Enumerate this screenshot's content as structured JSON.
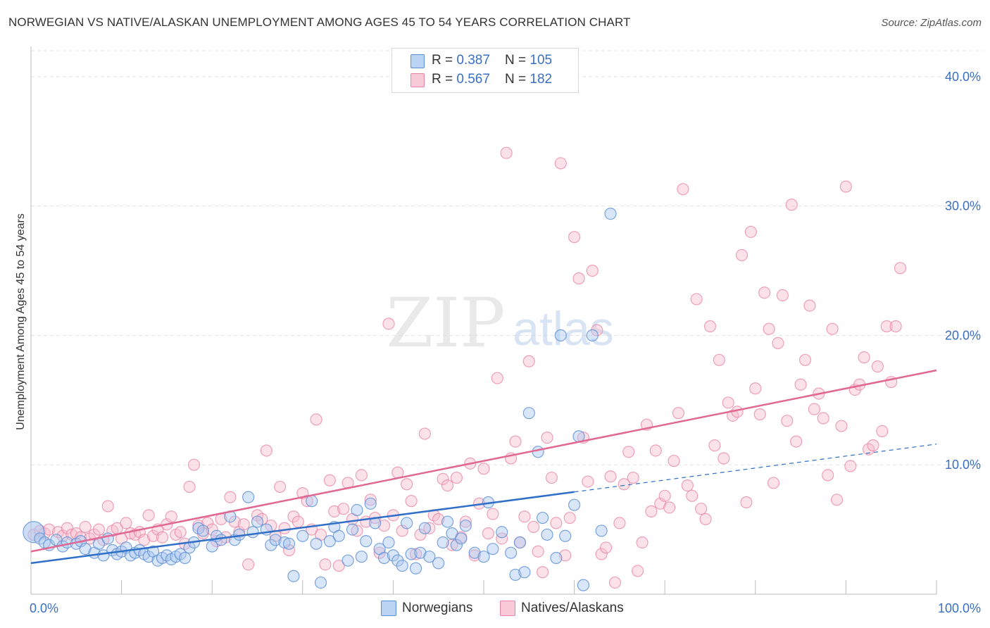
{
  "title": "NORWEGIAN VS NATIVE/ALASKAN UNEMPLOYMENT AMONG AGES 45 TO 54 YEARS CORRELATION CHART",
  "source": "Source: ZipAtlas.com",
  "watermark": {
    "zip": "ZIP",
    "atlas": "atlas"
  },
  "legend": {
    "series1": {
      "r_label": "R = ",
      "r_value": "0.387",
      "n_label": "N = ",
      "n_value": "105"
    },
    "series2": {
      "r_label": "R = ",
      "r_value": "0.567",
      "n_label": "N = ",
      "n_value": "182"
    }
  },
  "colors": {
    "blue_fill": "#aac8f0",
    "blue_stroke": "#5b8fd6",
    "blue_line": "#2f6fc7",
    "pink_fill": "#f6bccd",
    "pink_stroke": "#e884a4",
    "pink_line": "#e06892",
    "grid": "#e3e3e3",
    "tick_label": "#3a6fc4",
    "axis": "#bbbbbb"
  },
  "chart_data": {
    "type": "scatter",
    "title": "NORWEGIAN VS NATIVE/ALASKAN UNEMPLOYMENT AMONG AGES 45 TO 54 YEARS CORRELATION CHART",
    "xlabel": "",
    "ylabel": "Unemployment Among Ages 45 to 54 years",
    "xlim": [
      0,
      100
    ],
    "ylim": [
      0,
      42
    ],
    "x_tick_labels": [
      "0.0%",
      "100.0%"
    ],
    "y_ticks": [
      10,
      20,
      30,
      40
    ],
    "y_tick_labels": [
      "10.0%",
      "20.0%",
      "30.0%",
      "40.0%"
    ],
    "grid": true,
    "legend_position": "top-center",
    "series": [
      {
        "name": "Norwegians",
        "trend": {
          "x0": 0,
          "y0": 2.4,
          "x1": 60,
          "y1": 7.9,
          "dashed_to_x": 100,
          "dashed_to_y": 11.6
        },
        "points": [
          [
            0.3,
            4.8
          ],
          [
            1,
            4.3
          ],
          [
            1.5,
            4.0
          ],
          [
            2,
            3.8
          ],
          [
            2.8,
            4.2
          ],
          [
            3.5,
            3.7
          ],
          [
            4,
            4.0
          ],
          [
            5,
            3.9
          ],
          [
            5.5,
            4.1
          ],
          [
            6,
            3.5
          ],
          [
            7,
            3.2
          ],
          [
            7.5,
            3.9
          ],
          [
            8,
            3.0
          ],
          [
            8.5,
            4.3
          ],
          [
            9,
            3.4
          ],
          [
            9.5,
            3.1
          ],
          [
            10,
            3.3
          ],
          [
            10.5,
            3.6
          ],
          [
            11,
            3.0
          ],
          [
            11.5,
            3.2
          ],
          [
            12,
            3.4
          ],
          [
            12.5,
            3.1
          ],
          [
            13,
            2.9
          ],
          [
            13.5,
            3.3
          ],
          [
            14,
            2.6
          ],
          [
            14.5,
            2.8
          ],
          [
            15,
            3.0
          ],
          [
            15.5,
            2.7
          ],
          [
            16,
            2.9
          ],
          [
            16.5,
            3.1
          ],
          [
            17,
            2.8
          ],
          [
            17.5,
            3.6
          ],
          [
            18,
            4.0
          ],
          [
            18.5,
            5.1
          ],
          [
            19,
            4.9
          ],
          [
            20,
            3.7
          ],
          [
            20.5,
            4.5
          ],
          [
            21,
            4.2
          ],
          [
            22,
            6.0
          ],
          [
            22.5,
            4.2
          ],
          [
            23,
            4.6
          ],
          [
            24,
            7.5
          ],
          [
            24.5,
            4.8
          ],
          [
            25,
            5.6
          ],
          [
            26,
            5.0
          ],
          [
            26.5,
            3.8
          ],
          [
            27,
            4.2
          ],
          [
            28,
            4.0
          ],
          [
            28.5,
            3.9
          ],
          [
            29,
            1.4
          ],
          [
            30,
            4.5
          ],
          [
            31,
            7.2
          ],
          [
            31.5,
            3.9
          ],
          [
            32,
            0.9
          ],
          [
            33,
            4.1
          ],
          [
            33.5,
            5.2
          ],
          [
            34,
            4.5
          ],
          [
            35,
            2.6
          ],
          [
            35.5,
            5.0
          ],
          [
            36,
            6.5
          ],
          [
            36.5,
            2.9
          ],
          [
            37,
            4.1
          ],
          [
            37.5,
            7.0
          ],
          [
            38,
            5.5
          ],
          [
            38.5,
            3.5
          ],
          [
            39,
            2.8
          ],
          [
            39.5,
            4.0
          ],
          [
            40,
            3.0
          ],
          [
            40.5,
            2.6
          ],
          [
            41,
            2.2
          ],
          [
            41.5,
            5.5
          ],
          [
            42,
            3.1
          ],
          [
            42.5,
            2.0
          ],
          [
            43,
            3.2
          ],
          [
            43.5,
            5.1
          ],
          [
            44,
            2.9
          ],
          [
            45,
            2.4
          ],
          [
            45.5,
            4.0
          ],
          [
            46,
            5.6
          ],
          [
            46.5,
            4.7
          ],
          [
            47,
            3.8
          ],
          [
            47.5,
            4.3
          ],
          [
            48,
            5.3
          ],
          [
            49,
            3.2
          ],
          [
            50,
            2.9
          ],
          [
            50.5,
            7.1
          ],
          [
            51,
            3.5
          ],
          [
            52,
            4.8
          ],
          [
            53,
            3.2
          ],
          [
            53.5,
            1.5
          ],
          [
            54,
            4.0
          ],
          [
            54.5,
            1.7
          ],
          [
            55,
            14.0
          ],
          [
            56,
            11.0
          ],
          [
            56.5,
            5.9
          ],
          [
            57,
            4.6
          ],
          [
            58,
            2.8
          ],
          [
            58.5,
            20.0
          ],
          [
            59,
            4.5
          ],
          [
            60,
            6.9
          ],
          [
            60.5,
            12.2
          ],
          [
            61,
            0.7
          ],
          [
            62,
            20.0
          ],
          [
            63,
            4.9
          ],
          [
            64,
            29.4
          ]
        ]
      },
      {
        "name": "Natives/Alaskans",
        "trend": {
          "x0": 0,
          "y0": 3.3,
          "x1": 100,
          "y1": 17.3
        },
        "points": [
          [
            0.3,
            4.6
          ],
          [
            1,
            4.9
          ],
          [
            1.5,
            4.7
          ],
          [
            2,
            5.0
          ],
          [
            3,
            4.8
          ],
          [
            3.5,
            4.5
          ],
          [
            4,
            5.1
          ],
          [
            4.5,
            4.6
          ],
          [
            5,
            4.7
          ],
          [
            5.5,
            4.4
          ],
          [
            6,
            5.2
          ],
          [
            6.5,
            4.3
          ],
          [
            7,
            4.6
          ],
          [
            7.5,
            5.0
          ],
          [
            8,
            4.2
          ],
          [
            8.5,
            6.8
          ],
          [
            9,
            4.9
          ],
          [
            9.5,
            5.1
          ],
          [
            10,
            4.3
          ],
          [
            10.5,
            5.5
          ],
          [
            11,
            4.7
          ],
          [
            11.5,
            4.6
          ],
          [
            12,
            4.8
          ],
          [
            12.5,
            4.2
          ],
          [
            13,
            6.1
          ],
          [
            13.5,
            4.5
          ],
          [
            14,
            5.0
          ],
          [
            14.5,
            4.4
          ],
          [
            15,
            5.4
          ],
          [
            15.5,
            6.0
          ],
          [
            16,
            4.6
          ],
          [
            16.5,
            4.8
          ],
          [
            17,
            3.9
          ],
          [
            17.5,
            8.3
          ],
          [
            18,
            10.0
          ],
          [
            18.5,
            5.3
          ],
          [
            19,
            4.7
          ],
          [
            19.5,
            5.5
          ],
          [
            20,
            5.0
          ],
          [
            20.5,
            4.1
          ],
          [
            21,
            5.8
          ],
          [
            21.5,
            4.4
          ],
          [
            22,
            7.5
          ],
          [
            22.5,
            5.6
          ],
          [
            23,
            4.8
          ],
          [
            23.5,
            5.4
          ],
          [
            24,
            2.3
          ],
          [
            25,
            6.1
          ],
          [
            25.5,
            5.8
          ],
          [
            26,
            11.1
          ],
          [
            26.5,
            5.3
          ],
          [
            27,
            4.5
          ],
          [
            27.5,
            8.3
          ],
          [
            28,
            5.1
          ],
          [
            28.5,
            3.4
          ],
          [
            29,
            6.0
          ],
          [
            29.5,
            5.6
          ],
          [
            30,
            7.8
          ],
          [
            30.5,
            7.2
          ],
          [
            31,
            5.0
          ],
          [
            31.5,
            13.5
          ],
          [
            32,
            4.6
          ],
          [
            32.5,
            2.3
          ],
          [
            33,
            8.8
          ],
          [
            33.5,
            6.4
          ],
          [
            34,
            2.2
          ],
          [
            34.5,
            6.6
          ],
          [
            35,
            8.6
          ],
          [
            35.5,
            5.8
          ],
          [
            36,
            4.9
          ],
          [
            36.5,
            9.2
          ],
          [
            37,
            5.6
          ],
          [
            37.5,
            7.3
          ],
          [
            38,
            5.9
          ],
          [
            38.5,
            3.2
          ],
          [
            39,
            5.3
          ],
          [
            39.5,
            20.9
          ],
          [
            40,
            6.1
          ],
          [
            40.5,
            9.4
          ],
          [
            41,
            4.9
          ],
          [
            41.5,
            8.5
          ],
          [
            42,
            7.2
          ],
          [
            42.5,
            3.1
          ],
          [
            43,
            4.6
          ],
          [
            43.5,
            12.4
          ],
          [
            44,
            5.1
          ],
          [
            44.5,
            6.1
          ],
          [
            45,
            5.8
          ],
          [
            45.5,
            8.9
          ],
          [
            46,
            8.4
          ],
          [
            46.5,
            3.8
          ],
          [
            47,
            9.0
          ],
          [
            47.5,
            4.4
          ],
          [
            48,
            5.6
          ],
          [
            48.5,
            10.1
          ],
          [
            49,
            3.0
          ],
          [
            49.5,
            7.0
          ],
          [
            50,
            9.7
          ],
          [
            50.5,
            4.7
          ],
          [
            51,
            6.2
          ],
          [
            51.5,
            16.7
          ],
          [
            52,
            4.3
          ],
          [
            52.5,
            34.1
          ],
          [
            53,
            10.5
          ],
          [
            53.5,
            11.8
          ],
          [
            54,
            4.0
          ],
          [
            54.5,
            6.0
          ],
          [
            55,
            18.0
          ],
          [
            55.5,
            5.2
          ],
          [
            56,
            3.3
          ],
          [
            56.5,
            1.7
          ],
          [
            57,
            12.1
          ],
          [
            57.5,
            9.0
          ],
          [
            58,
            5.5
          ],
          [
            58.5,
            33.3
          ],
          [
            59,
            3.0
          ],
          [
            59.5,
            5.9
          ],
          [
            60,
            27.6
          ],
          [
            60.5,
            24.4
          ],
          [
            61,
            12.1
          ],
          [
            61.5,
            8.7
          ],
          [
            62,
            25.0
          ],
          [
            62.5,
            20.4
          ],
          [
            63,
            3.1
          ],
          [
            63.5,
            3.6
          ],
          [
            64,
            9.1
          ],
          [
            64.5,
            0.9
          ],
          [
            65,
            5.5
          ],
          [
            65.5,
            8.5
          ],
          [
            66,
            11.0
          ],
          [
            66.5,
            9.0
          ],
          [
            67,
            1.8
          ],
          [
            67.5,
            4.0
          ],
          [
            68,
            13.1
          ],
          [
            68.5,
            6.4
          ],
          [
            69,
            11.1
          ],
          [
            69.5,
            7.0
          ],
          [
            70,
            7.6
          ],
          [
            70.5,
            6.7
          ],
          [
            71,
            10.3
          ],
          [
            71.5,
            14.0
          ],
          [
            72,
            31.3
          ],
          [
            72.5,
            8.4
          ],
          [
            73,
            7.6
          ],
          [
            73.5,
            22.8
          ],
          [
            74,
            6.6
          ],
          [
            74.5,
            5.8
          ],
          [
            75,
            20.7
          ],
          [
            75.5,
            11.5
          ],
          [
            76,
            18.1
          ],
          [
            76.5,
            10.5
          ],
          [
            77,
            14.8
          ],
          [
            77.5,
            13.8
          ],
          [
            78,
            14.1
          ],
          [
            78.5,
            26.2
          ],
          [
            79,
            7.1
          ],
          [
            79.5,
            28.0
          ],
          [
            80,
            15.9
          ],
          [
            80.5,
            13.9
          ],
          [
            81,
            23.3
          ],
          [
            81.5,
            20.5
          ],
          [
            82,
            8.6
          ],
          [
            82.5,
            19.4
          ],
          [
            83,
            23.1
          ],
          [
            83.5,
            13.4
          ],
          [
            84,
            30.1
          ],
          [
            84.5,
            11.8
          ],
          [
            85,
            16.2
          ],
          [
            85.5,
            18.1
          ],
          [
            86,
            22.3
          ],
          [
            86.5,
            14.3
          ],
          [
            87,
            15.5
          ],
          [
            87.5,
            13.6
          ],
          [
            88,
            9.2
          ],
          [
            88.5,
            20.5
          ],
          [
            89,
            7.3
          ],
          [
            89.5,
            13.0
          ],
          [
            90,
            31.5
          ],
          [
            90.5,
            9.9
          ],
          [
            91,
            15.8
          ],
          [
            91.5,
            16.2
          ],
          [
            92,
            18.3
          ],
          [
            92.5,
            11.2
          ],
          [
            93,
            11.5
          ],
          [
            93.5,
            17.6
          ],
          [
            94,
            12.6
          ],
          [
            94.5,
            20.7
          ],
          [
            95,
            16.4
          ],
          [
            95.5,
            20.7
          ],
          [
            96,
            25.2
          ]
        ]
      }
    ]
  },
  "bottom_legend": {
    "series1": "Norwegians",
    "series2": "Natives/Alaskans"
  }
}
